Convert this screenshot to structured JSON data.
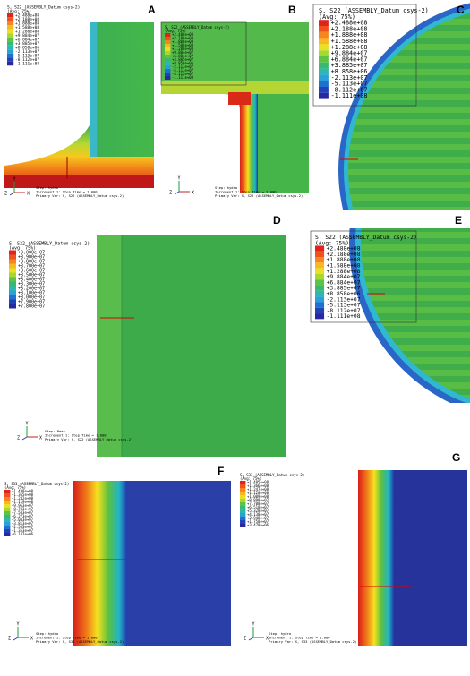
{
  "panels": [
    {
      "label": "A",
      "legend_title": "S, S22 (ASSEMBLY_Datum csys-2)",
      "legend_avg": "(Avg: 75%)",
      "legend_values": [
        "+2.488e+08",
        "+2.188e+08",
        "+1.888e+08",
        "+1.588e+08",
        "+1.288e+08",
        "+9.884e+07",
        "+6.884e+07",
        "+3.885e+07",
        "+8.858e+06",
        "-2.113e+07",
        "-5.113e+07",
        "-8.112e+07",
        "-1.111e+08"
      ],
      "triad": [
        "Y",
        "Z",
        "X"
      ],
      "step": "Step: hydro",
      "increment": "Increment    1: Step Time =    1.000",
      "primary_var": "Primary Var: S, S22 (ASSEMBLY_Datum csys-2)"
    },
    {
      "label": "B",
      "legend_title": "S, S22 (ASSEMBLY_Datum csys-2)",
      "legend_avg": "(Avg: 75%)",
      "legend_values": [
        "+2.488e+08",
        "+2.188e+08",
        "+1.888e+08",
        "+1.588e+08",
        "+1.288e+08",
        "+9.884e+07",
        "+6.884e+07",
        "+3.885e+07",
        "+8.858e+06",
        "-2.113e+07",
        "-5.113e+07",
        "-8.112e+07",
        "-1.111e+08"
      ],
      "triad": [
        "Y",
        "Z",
        "X"
      ],
      "step": "Step: hydro",
      "increment": "Increment    1: Step Time =    1.000",
      "primary_var": "Primary Var: S, S22 (ASSEMBLY_Datum csys-2)"
    },
    {
      "label": "C",
      "legend_title": "S, S22 (ASSEMBLY_Datum csys-2)",
      "legend_avg": "(Avg: 75%)",
      "legend_values": [
        "+2.488e+08",
        "+2.188e+08",
        "+1.888e+08",
        "+1.588e+08",
        "+1.288e+08",
        "+9.884e+07",
        "+6.884e+07",
        "+3.885e+07",
        "+8.858e+06",
        "-2.113e+07",
        "-5.113e+07",
        "-8.112e+07",
        "-1.111e+08"
      ]
    },
    {
      "label": "D",
      "legend_title": "S, S22 (ASSEMBLY_Datum csys-2)",
      "legend_avg": "(Avg: 75%)",
      "legend_values": [
        "+9.000e+07",
        "+8.900e+07",
        "+8.800e+07",
        "+8.700e+07",
        "+8.600e+07",
        "+8.500e+07",
        "+8.400e+07",
        "+8.300e+07",
        "+8.200e+07",
        "+8.100e+07",
        "+8.000e+07",
        "+7.900e+07",
        "+7.800e+07"
      ],
      "triad": [
        "Y",
        "Z",
        "X"
      ],
      "step": "Step: Pmax",
      "increment": "Increment    1: Step Time =    1.000",
      "primary_var": "Primary Var: S, S22 (ASSEMBLY_Datum csys-2)"
    },
    {
      "label": "E",
      "legend_title": "S, S22 (ASSEMBLY_Datum csys-2)",
      "legend_avg": "(Avg: 75%)",
      "legend_values": [
        "+2.488e+08",
        "+2.188e+08",
        "+1.888e+08",
        "+1.588e+08",
        "+1.288e+08",
        "+9.884e+07",
        "+6.884e+07",
        "+3.885e+07",
        "+8.858e+06",
        "-2.113e+07",
        "-5.113e+07",
        "-8.112e+07",
        "-1.111e+08"
      ]
    },
    {
      "label": "F",
      "legend_title": "S, S33 (ASSEMBLY_Datum csys-2)",
      "legend_avg": "(Avg: 75%)",
      "legend_values": [
        "+1.488e+08",
        "+1.365e+08",
        "+1.242e+08",
        "+1.119e+08",
        "+9.963e+07",
        "+8.733e+07",
        "+7.503e+07",
        "+6.273e+07",
        "+5.043e+07",
        "+3.813e+07",
        "+2.583e+07",
        "+1.353e+07",
        "+6.137e+06"
      ],
      "triad": [
        "Y",
        "Z",
        "X"
      ],
      "step": "Step: hydro",
      "increment": "Increment    1: Step Time =    1.000",
      "primary_var": "Primary Var: S, S33 (ASSEMBLY_Datum csys-2)"
    },
    {
      "label": "G",
      "legend_title": "S, S33 (ASSEMBLY_Datum csys-2)",
      "legend_avg": "(Avg: 75%)",
      "legend_values": [
        "+1.485e+08",
        "+1.366e+08",
        "+1.247e+08",
        "+1.128e+08",
        "+1.009e+08",
        "+8.898e+07",
        "+7.708e+07",
        "+6.518e+07",
        "+5.328e+07",
        "+4.138e+07",
        "+2.948e+07",
        "+1.758e+07",
        "+3.479e+06"
      ],
      "triad": [
        "Y",
        "Z",
        "X"
      ],
      "step": "Step: hydro",
      "increment": "Increment    1: Step Time =    1.000",
      "primary_var": "Primary Var: S, S33 (ASSEMBLY_Datum csys-2)"
    }
  ]
}
